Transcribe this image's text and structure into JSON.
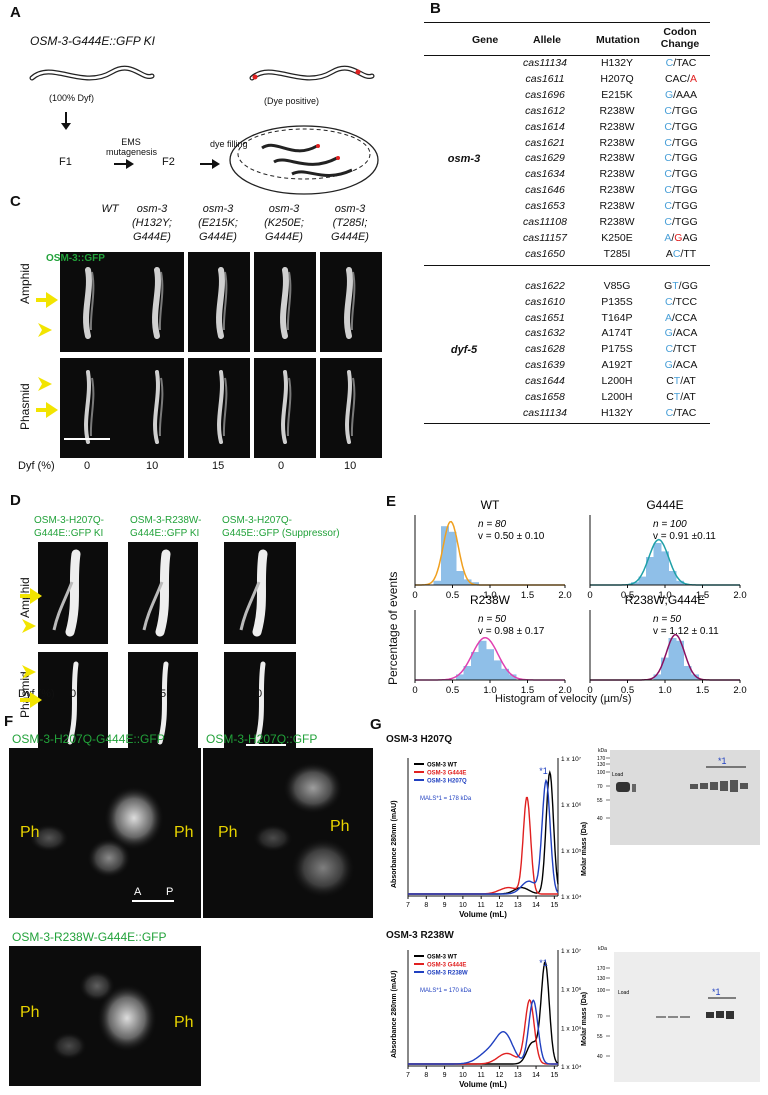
{
  "panels": {
    "A": "A",
    "B": "B",
    "C": "C",
    "D": "D",
    "E": "E",
    "F": "F",
    "G": "G"
  },
  "panelA": {
    "title": "OSM-3-G444E::GFP KI",
    "worm_left_label": "(100% Dyf)",
    "worm_right_label": "(Dye positive)",
    "f1": "F1",
    "ems_line1": "EMS",
    "ems_line2": "mutagenesis",
    "f2": "F2",
    "dye_filling": "dye filling"
  },
  "panelB": {
    "headers": {
      "gene": "Gene",
      "allele": "Allele",
      "mutation": "Mutation",
      "codon": "Codon Change"
    },
    "groups": [
      {
        "gene": "osm-3",
        "rows": [
          {
            "allele": "cas11134",
            "mutation": "H132Y",
            "codon": [
              [
                "C",
                "b"
              ],
              [
                "/",
                ""
              ],
              [
                "TAC",
                ""
              ]
            ]
          },
          {
            "allele": "cas1611",
            "mutation": "H207Q",
            "codon": [
              [
                "CAC",
                ""
              ],
              [
                "/",
                ""
              ],
              [
                "A",
                "r"
              ]
            ]
          },
          {
            "allele": "cas1696",
            "mutation": "E215K",
            "codon": [
              [
                "G",
                "b"
              ],
              [
                "/",
                ""
              ],
              [
                "AAA",
                ""
              ]
            ]
          },
          {
            "allele": "cas1612",
            "mutation": "R238W",
            "codon": [
              [
                "C",
                "b"
              ],
              [
                "/",
                ""
              ],
              [
                "TGG",
                ""
              ]
            ]
          },
          {
            "allele": "cas1614",
            "mutation": "R238W",
            "codon": [
              [
                "C",
                "b"
              ],
              [
                "/",
                ""
              ],
              [
                "TGG",
                ""
              ]
            ]
          },
          {
            "allele": "cas1621",
            "mutation": "R238W",
            "codon": [
              [
                "C",
                "b"
              ],
              [
                "/",
                ""
              ],
              [
                "TGG",
                ""
              ]
            ]
          },
          {
            "allele": "cas1629",
            "mutation": "R238W",
            "codon": [
              [
                "C",
                "b"
              ],
              [
                "/",
                ""
              ],
              [
                "TGG",
                ""
              ]
            ]
          },
          {
            "allele": "cas1634",
            "mutation": "R238W",
            "codon": [
              [
                "C",
                "b"
              ],
              [
                "/",
                ""
              ],
              [
                "TGG",
                ""
              ]
            ]
          },
          {
            "allele": "cas1646",
            "mutation": "R238W",
            "codon": [
              [
                "C",
                "b"
              ],
              [
                "/",
                ""
              ],
              [
                "TGG",
                ""
              ]
            ]
          },
          {
            "allele": "cas1653",
            "mutation": "R238W",
            "codon": [
              [
                "C",
                "b"
              ],
              [
                "/",
                ""
              ],
              [
                "TGG",
                ""
              ]
            ]
          },
          {
            "allele": "cas11108",
            "mutation": "R238W",
            "codon": [
              [
                "C",
                "b"
              ],
              [
                "/",
                ""
              ],
              [
                "TGG",
                ""
              ]
            ]
          },
          {
            "allele": "cas11157",
            "mutation": "K250E",
            "codon": [
              [
                "A",
                "b"
              ],
              [
                "/",
                ""
              ],
              [
                "G",
                "r"
              ],
              [
                "AG",
                ""
              ]
            ]
          },
          {
            "allele": "cas1650",
            "mutation": "T285I",
            "codon": [
              [
                "A",
                ""
              ],
              [
                "C",
                "b"
              ],
              [
                "/",
                ""
              ],
              [
                "TT",
                ""
              ]
            ]
          }
        ]
      },
      {
        "gene": "dyf-5",
        "rows": [
          {
            "allele": "cas1622",
            "mutation": "V85G",
            "codon": [
              [
                "G",
                ""
              ],
              [
                "T",
                "b"
              ],
              [
                "/",
                ""
              ],
              [
                "GG",
                ""
              ]
            ]
          },
          {
            "allele": "cas1610",
            "mutation": "P135S",
            "codon": [
              [
                "C",
                "b"
              ],
              [
                "/",
                ""
              ],
              [
                "TCC",
                ""
              ]
            ]
          },
          {
            "allele": "cas1651",
            "mutation": "T164P",
            "codon": [
              [
                "A",
                "b"
              ],
              [
                "/",
                ""
              ],
              [
                "CCA",
                ""
              ]
            ]
          },
          {
            "allele": "cas1632",
            "mutation": "A174T",
            "codon": [
              [
                "G",
                "b"
              ],
              [
                "/",
                ""
              ],
              [
                "ACA",
                ""
              ]
            ]
          },
          {
            "allele": "cas1628",
            "mutation": "P175S",
            "codon": [
              [
                "C",
                "b"
              ],
              [
                "/",
                ""
              ],
              [
                "TCT",
                ""
              ]
            ]
          },
          {
            "allele": "cas1639",
            "mutation": "A192T",
            "codon": [
              [
                "G",
                "b"
              ],
              [
                "/",
                ""
              ],
              [
                "ACA",
                ""
              ]
            ]
          },
          {
            "allele": "cas1644",
            "mutation": "L200H",
            "codon": [
              [
                "C",
                ""
              ],
              [
                "T",
                "b"
              ],
              [
                "/",
                ""
              ],
              [
                "AT",
                ""
              ]
            ]
          },
          {
            "allele": "cas1658",
            "mutation": "L200H",
            "codon": [
              [
                "C",
                ""
              ],
              [
                "T",
                "b"
              ],
              [
                "/",
                ""
              ],
              [
                "AT",
                ""
              ]
            ]
          },
          {
            "allele": "cas11134",
            "mutation": "H132Y",
            "codon": [
              [
                "C",
                "b"
              ],
              [
                "/",
                ""
              ],
              [
                "TAC",
                ""
              ]
            ]
          }
        ]
      }
    ]
  },
  "panelC": {
    "columns": [
      "WT",
      "osm-3 (H132Y; G444E)",
      "osm-3 (E215K; G444E)",
      "osm-3 (K250E; G444E)",
      "osm-3 (T285I; G444E)"
    ],
    "gfp_label": "OSM-3::GFP",
    "row_amphid": "Amphid",
    "row_phasmid": "Phasmid",
    "dyf_label": "Dyf (%)",
    "dyf_values": [
      "0",
      "10",
      "15",
      "0",
      "10"
    ]
  },
  "panelD": {
    "col1_l1": "OSM-3-H207Q-",
    "col1_l2": "G444E::GFP KI",
    "col2_l1": "OSM-3-R238W-",
    "col2_l2": "G444E::GFP KI",
    "col3_l1": "OSM-3-H207Q-",
    "col3_l2": "G445E::GFP (Suppressor)",
    "row_amphid": "Amphid",
    "row_phasmid": "Phasmid",
    "dyf_label": "Dyf (%)",
    "dyf_values": [
      "0",
      "5",
      "0"
    ]
  },
  "chart_data": [
    {
      "type": "bar",
      "title": "WT",
      "n": "n = 80",
      "v": "v = 0.50 ± 0.10",
      "fit_color": "#f0a020",
      "x": [
        0.3,
        0.4,
        0.5,
        0.6,
        0.7,
        0.8
      ],
      "values": [
        3,
        42,
        38,
        10,
        4,
        2
      ],
      "xlim": [
        0,
        2.0
      ],
      "xticks": [
        "0",
        "0.5",
        "1.0",
        "1.5",
        "2.0"
      ]
    },
    {
      "type": "bar",
      "title": "G444E",
      "n": "n = 100",
      "v": "v = 0.91 ±0.11",
      "fit_color": "#1fa0a8",
      "x": [
        0.6,
        0.7,
        0.8,
        0.9,
        1.0,
        1.1,
        1.2
      ],
      "values": [
        2,
        6,
        20,
        30,
        24,
        10,
        3
      ],
      "xlim": [
        0,
        2.0
      ],
      "xticks": [
        "0",
        "0.5",
        "1.0",
        "1.5",
        "2.0"
      ]
    },
    {
      "type": "bar",
      "title": "R238W",
      "n": "n = 50",
      "v": "v = 0.98 ± 0.17",
      "fit_color": "#e040b0",
      "x": [
        0.6,
        0.7,
        0.8,
        0.9,
        1.0,
        1.1,
        1.2,
        1.3
      ],
      "values": [
        4,
        10,
        20,
        28,
        22,
        14,
        8,
        4
      ],
      "xlim": [
        0,
        2.0
      ],
      "xticks": [
        "0",
        "0.5",
        "1.0",
        "1.5",
        "2.0"
      ]
    },
    {
      "type": "bar",
      "title": "R238W;G444E",
      "n": "n = 50",
      "v": "v = 1.12 ± 0.11",
      "fit_color": "#8a1060",
      "x": [
        0.9,
        1.0,
        1.1,
        1.2,
        1.3,
        1.4
      ],
      "values": [
        4,
        16,
        30,
        28,
        10,
        4
      ],
      "xlim": [
        0,
        2.0
      ],
      "xticks": [
        "0",
        "0.5",
        "1.0",
        "1.5",
        "2.0"
      ]
    }
  ],
  "panelE": {
    "ylabel": "Percentage of events",
    "xlabel": "Histogram of velocity (µm/s)"
  },
  "panelF": {
    "img1_title": "OSM-3-H207Q-G444E::GFP",
    "img2_title": "OSM-3-H207Q::GFP",
    "img3_title": "OSM-3-R238W-G444E::GFP",
    "ph": "Ph",
    "a": "A",
    "p": "P"
  },
  "panelG": {
    "top_title": "OSM-3 H207Q",
    "bottom_title": "OSM-3 R238W",
    "top_legend": [
      "OSM-3 WT",
      "OSM-3 G444E",
      "OSM-3 H207Q"
    ],
    "bottom_legend": [
      "OSM-3 WT",
      "OSM-3 G444E",
      "OSM-3 R238W"
    ],
    "top_mals": "MALS*1 = 178 kDa",
    "bottom_mals": "MALS*1 = 170 kDa",
    "ylabel_left": "Absorbance 280nm (mAU)",
    "ylabel_right": "Molar mass (Da)",
    "xlabel": "Volume (mL)",
    "xticks": [
      "7",
      "8",
      "9",
      "10",
      "11",
      "12",
      "13",
      "14",
      "15"
    ],
    "y_right_ticks": [
      "1 x 10⁷",
      "1 x 10⁶",
      "1 x 10⁵",
      "1 x 10⁴"
    ],
    "star": "*1",
    "gel_kda": "kDa",
    "gel_load": "Load",
    "gel_top_markers": [
      "170",
      "130",
      "100",
      "70",
      "55",
      "40"
    ],
    "gel_bottom_markers": [
      "170",
      "130",
      "100",
      "70",
      "55",
      "40"
    ],
    "line_colors": {
      "wt": "#000000",
      "g444e": "#e02020",
      "mut": "#2040c0"
    }
  }
}
